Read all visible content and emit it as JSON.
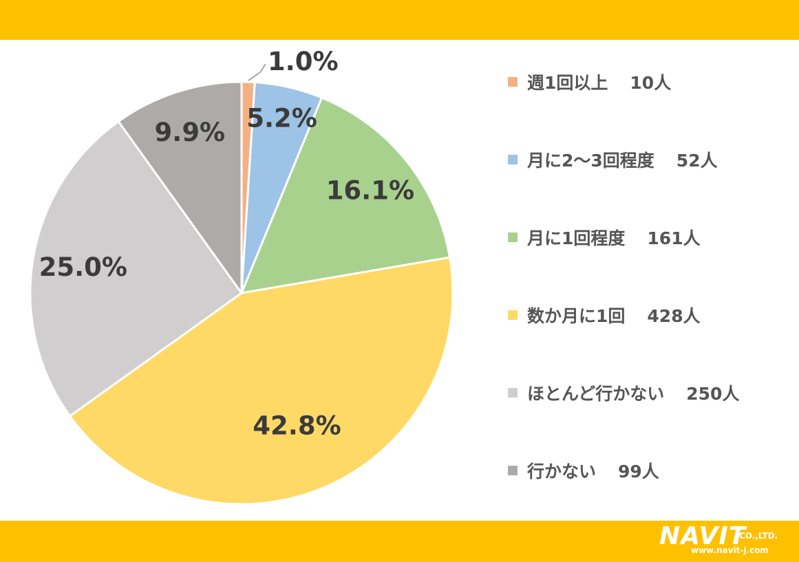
{
  "colors": {
    "band": "#FFC000",
    "label_text": "#3b3b3b",
    "legend_text": "#555555",
    "slice_border": "#ffffff"
  },
  "chart_data": {
    "type": "pie",
    "start_angle_deg": 0,
    "direction": "clockwise",
    "slices": [
      {
        "category": "週1回以上",
        "count": "10人",
        "value": 1.0,
        "label": "1.0%",
        "color": "#F4B183"
      },
      {
        "category": "月に2～3回程度",
        "count": "52人",
        "value": 5.2,
        "label": "5.2%",
        "color": "#9DC3E6"
      },
      {
        "category": "月に1回程度",
        "count": "161人",
        "value": 16.1,
        "label": "16.1%",
        "color": "#A9D18E"
      },
      {
        "category": "数か月に1回",
        "count": "428人",
        "value": 42.8,
        "label": "42.8%",
        "color": "#FFD966"
      },
      {
        "category": "ほとんど行かない",
        "count": "250人",
        "value": 25.0,
        "label": "25.0%",
        "color": "#D0CECE"
      },
      {
        "category": "行かない",
        "count": "99人",
        "value": 9.9,
        "label": "9.9%",
        "color": "#AEAAAA"
      }
    ],
    "legend_position": "right"
  },
  "logo": {
    "name": "NAVIT",
    "suffix": "CO.,LTD.",
    "url": "www.navit-j.com"
  }
}
